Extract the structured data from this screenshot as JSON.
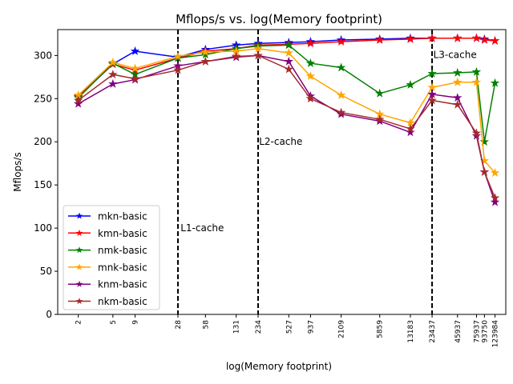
{
  "chart_data": {
    "type": "line",
    "title": "Mflops/s vs. log(Memory footprint)",
    "xlabel": "log(Memory footprint)",
    "ylabel": "Mflops/s",
    "x_scale": "log",
    "ylim": [
      0,
      330
    ],
    "xlim": [
      1.16,
      165000
    ],
    "grid": false,
    "legend_position": "lower-left",
    "x_ticks": [
      "2",
      "5",
      "9",
      "28",
      "58",
      "131",
      "234",
      "527",
      "937",
      "2109",
      "5859",
      "13183",
      "23437",
      "45937",
      "75937",
      "93750",
      "123984"
    ],
    "x": [
      2,
      5,
      9,
      28,
      58,
      131,
      234,
      527,
      937,
      2109,
      5859,
      13183,
      23437,
      45937,
      75937,
      93750,
      123984
    ],
    "y_ticks": [
      0,
      50,
      100,
      150,
      200,
      250,
      300
    ],
    "series": [
      {
        "name": "mkn-basic",
        "color": "#0000ff",
        "values": [
          252,
          290,
          305,
          298,
          307,
          312,
          314,
          315,
          316,
          318,
          319,
          320,
          320,
          320,
          320,
          319,
          317
        ]
      },
      {
        "name": "kmn-basic",
        "color": "#ff0000",
        "values": [
          253,
          290,
          283,
          297,
          305,
          308,
          312,
          313,
          314,
          316,
          318,
          319,
          320,
          320,
          320,
          318,
          317
        ]
      },
      {
        "name": "nmk-basic",
        "color": "#008000",
        "values": [
          251,
          291,
          278,
          297,
          301,
          308,
          311,
          312,
          291,
          286,
          256,
          266,
          279,
          280,
          281,
          200,
          268
        ]
      },
      {
        "name": "mnk-basic",
        "color": "#ffa500",
        "values": [
          254,
          292,
          285,
          299,
          304,
          305,
          308,
          303,
          276,
          254,
          232,
          222,
          263,
          269,
          269,
          178,
          164
        ]
      },
      {
        "name": "knm-basic",
        "color": "#800080",
        "values": [
          244,
          267,
          272,
          288,
          293,
          298,
          300,
          293,
          253,
          232,
          224,
          211,
          255,
          251,
          207,
          165,
          130
        ]
      },
      {
        "name": "nkm-basic",
        "color": "#a52a2a",
        "values": [
          248,
          278,
          273,
          283,
          293,
          299,
          300,
          284,
          250,
          234,
          226,
          215,
          248,
          243,
          210,
          165,
          135
        ]
      }
    ],
    "annotations": [
      {
        "text": "L1-cache",
        "x": 30,
        "y": 100
      },
      {
        "text": "L2-cache",
        "x": 240,
        "y": 200
      },
      {
        "text": "L3-cache",
        "x": 24200,
        "y": 301
      }
    ],
    "vlines": [
      28,
      234,
      23437
    ]
  }
}
